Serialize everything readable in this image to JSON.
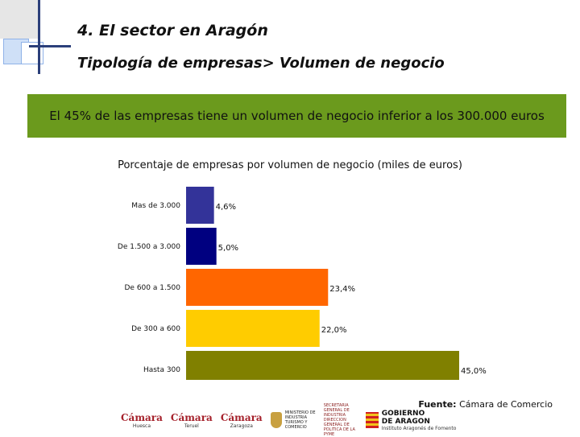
{
  "slide": {
    "title": "4. El sector en Aragón",
    "subtitle": "Tipología de empresas> Volumen de negocio",
    "banner": "El 45% de las empresas tiene un volumen de negocio inferior a los 300.000 euros",
    "source_label": "Fuente:",
    "source_value": "Cámara de Comercio"
  },
  "logos": {
    "camara_name": "Cámara",
    "camara_huesca": "Huesca",
    "camara_teruel": "Teruel",
    "camara_zaragoza": "Zaragoza",
    "ministerio": "MINISTERIO DE INDUSTRIA TURISMO Y COMERCIO",
    "secretaria": "SECRETARIA GENERAL DE INDUSTRIA DIRECCION GENERAL DE POLITICA DE LA PYME",
    "gobierno_line1": "GOBIERNO",
    "gobierno_line2": "DE ARAGON",
    "gobierno_sub": "Instituto Aragonés de Fomento"
  },
  "colors": {
    "banner_green": "#6b9a1d",
    "accent_navy": "#2b3f7a"
  },
  "chart_data": {
    "type": "bar",
    "orientation": "horizontal",
    "title": "Porcentaje de empresas por volumen de negocio (miles de euros)",
    "categories": [
      "Mas de 3.000",
      "De 1.500 a 3.000",
      "De 600 a 1.500",
      "De 300 a 600",
      "Hasta 300"
    ],
    "values": [
      4.6,
      5.0,
      23.4,
      22.0,
      45.0
    ],
    "value_labels": [
      "4,6%",
      "5,0%",
      "23,4%",
      "22,0%",
      "45,0%"
    ],
    "bar_colors": [
      "#333399",
      "#000080",
      "#ff6600",
      "#ffcc00",
      "#808000"
    ],
    "xlim": [
      0,
      45
    ],
    "grid": false,
    "legend": "none"
  }
}
